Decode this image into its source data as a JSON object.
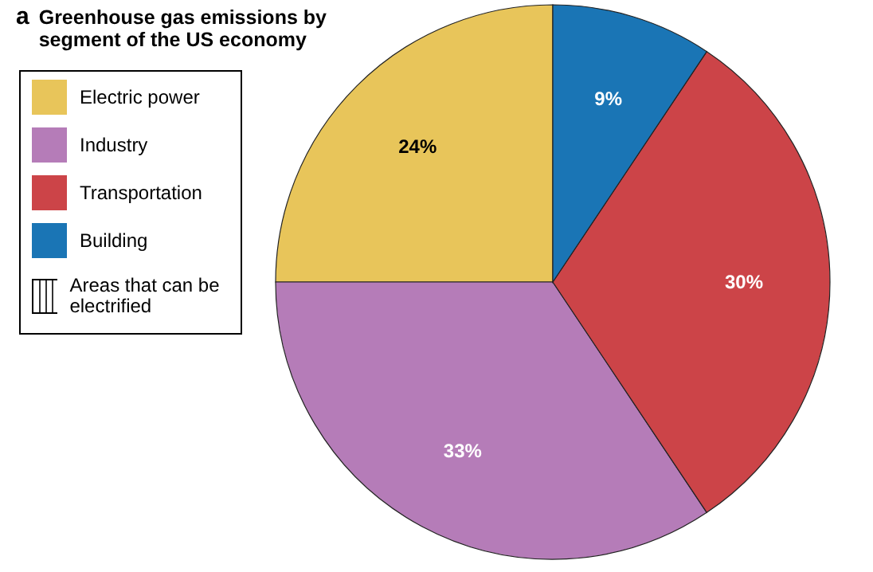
{
  "chart_data": {
    "type": "pie",
    "title": "Greenhouse gas emissions by segment of the US economy",
    "categories": [
      "Electric power",
      "Industry",
      "Transportation",
      "Building"
    ],
    "values": [
      24,
      33,
      30,
      9
    ],
    "colors": [
      "#e8c55a",
      "#b57cb8",
      "#cc4448",
      "#1a75b5"
    ],
    "value_labels": [
      "24%",
      "33%",
      "30%",
      "9%"
    ],
    "legend": "left",
    "annotations": [
      "a",
      "Areas that can be electrified"
    ]
  }
}
